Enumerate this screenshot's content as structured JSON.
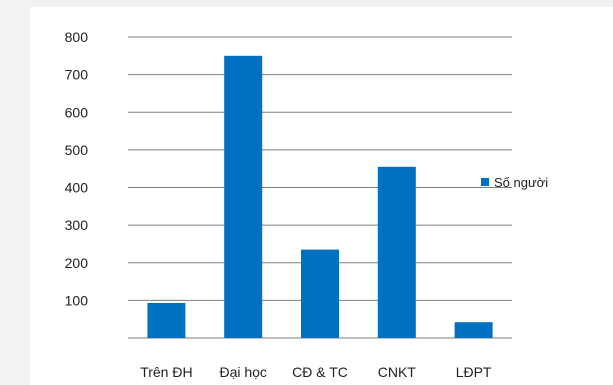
{
  "chart_data": {
    "type": "bar",
    "categories": [
      "Trên ĐH",
      "Đại học",
      "CĐ & TC",
      "CNKT",
      "LĐPT"
    ],
    "series": [
      {
        "name": "Số người",
        "values": [
          93,
          750,
          235,
          455,
          42
        ]
      }
    ],
    "ylim": [
      0,
      800
    ],
    "yticks": [
      100,
      200,
      300,
      400,
      500,
      600,
      700,
      800
    ],
    "grid": true,
    "legend": "right",
    "bar_color": "#0070c0",
    "grid_color": "#7f7f7f"
  }
}
